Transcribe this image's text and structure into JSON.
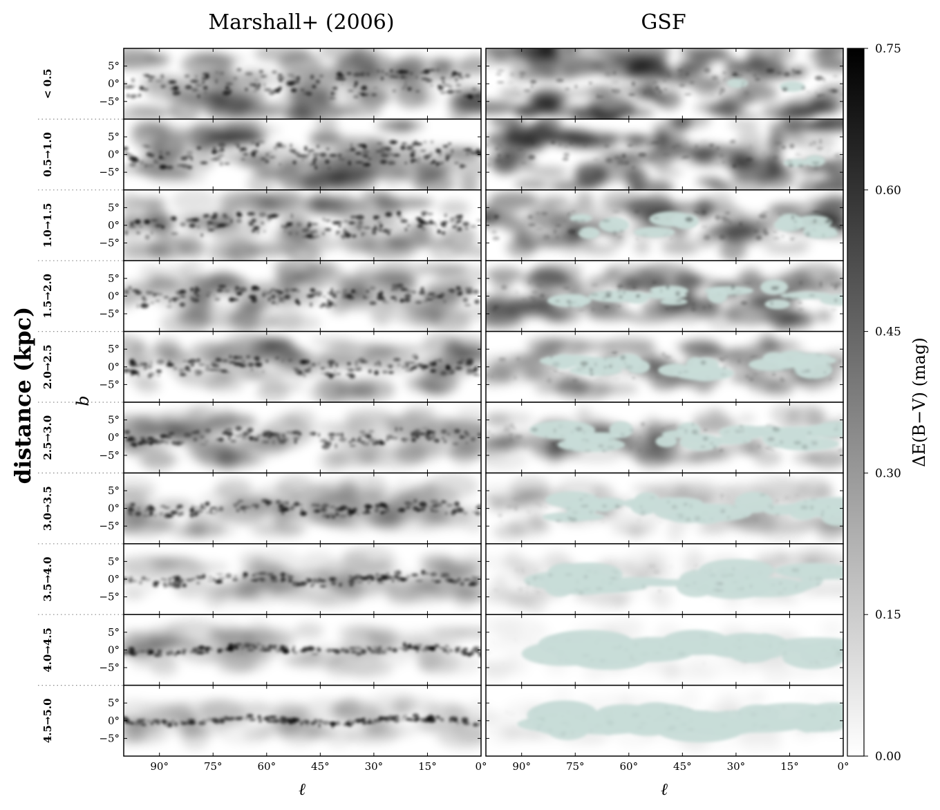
{
  "chart_data": {
    "type": "heatmap",
    "column_titles": [
      "Marshall+ (2006)",
      "GSF"
    ],
    "row_title": "distance (kpc)",
    "rows": [
      "< 0.5",
      "0.5→1.0",
      "1.0→1.5",
      "1.5→2.0",
      "2.0→2.5",
      "2.5→3.0",
      "3.0→3.5",
      "3.5→4.0",
      "4.0→4.5",
      "4.5→5.0"
    ],
    "y_axis_label": "b",
    "y_ticks": [
      "5°",
      "0°",
      "−5°"
    ],
    "x_axis_label": "ℓ",
    "x_ticks": [
      "90°",
      "75°",
      "60°",
      "45°",
      "30°",
      "15°",
      "0°"
    ],
    "colorbar": {
      "label": "ΔE(B−V) (mag)",
      "ticks": [
        "0.75",
        "0.60",
        "0.45",
        "0.30",
        "0.15",
        "0.00"
      ],
      "range": [
        0.0,
        0.75
      ],
      "colormap": "white-to-black",
      "missing_color": "#c8dcd8"
    }
  }
}
